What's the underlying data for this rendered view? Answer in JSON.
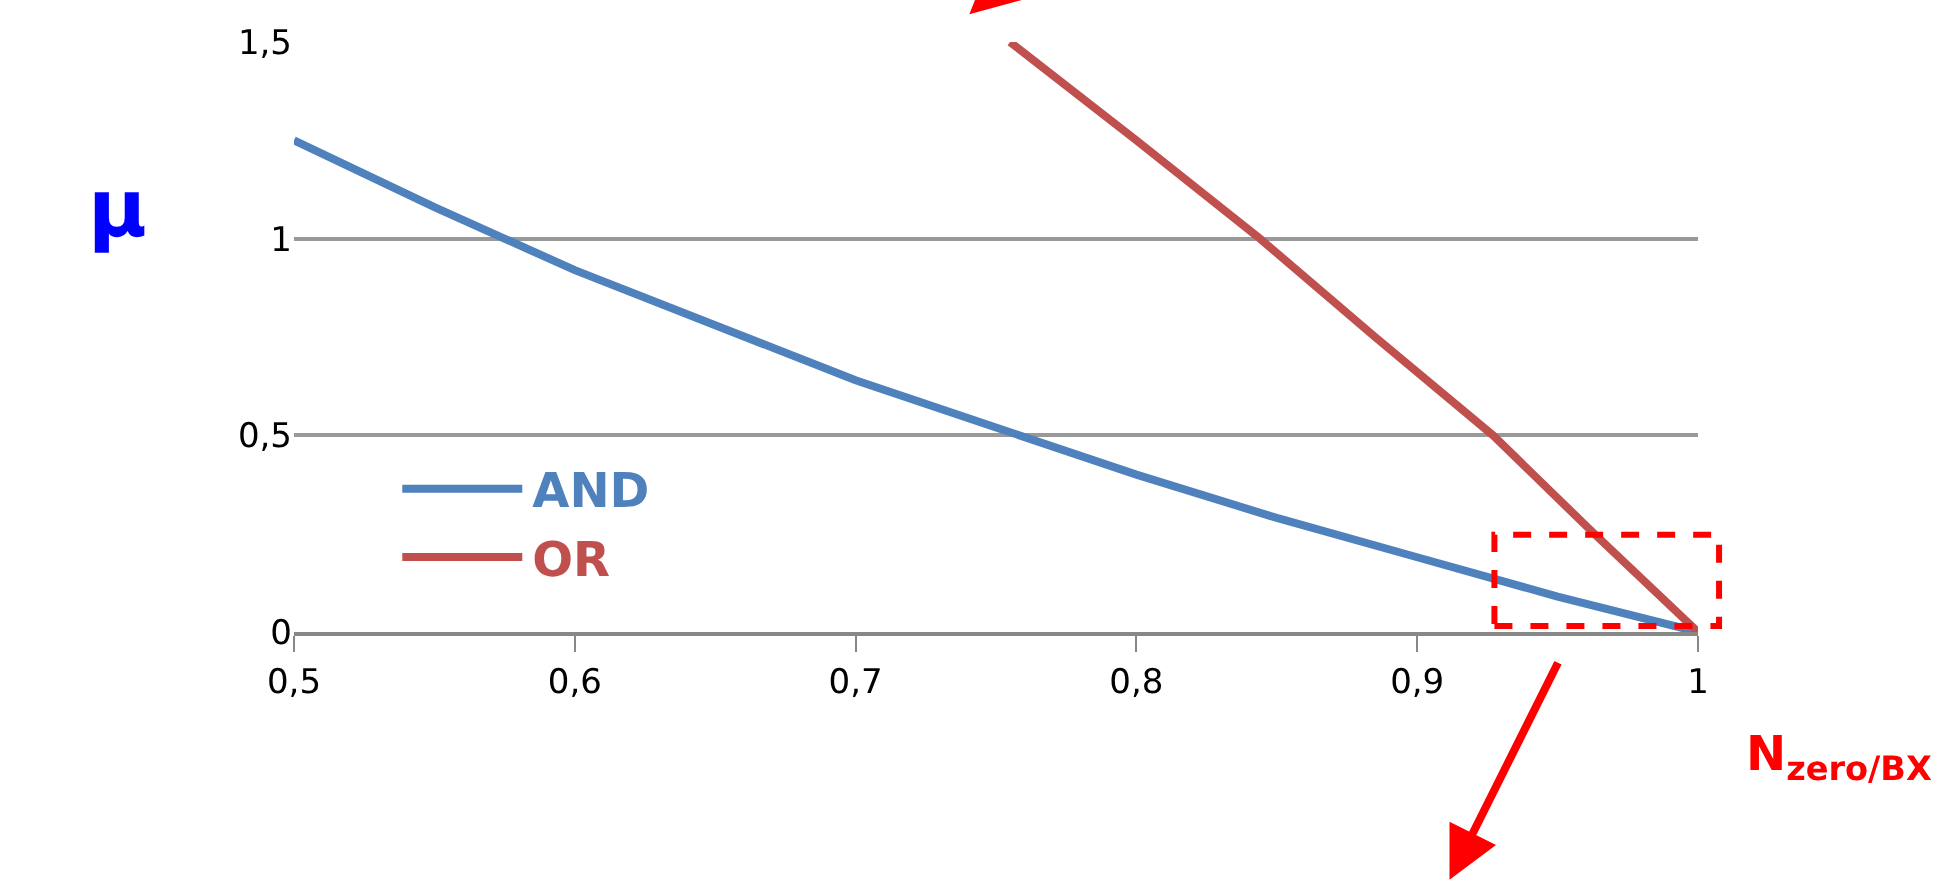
{
  "chart_data": {
    "type": "line",
    "ylabel": "μ",
    "x": [
      0.5,
      0.55,
      0.6,
      0.65,
      0.7,
      0.75,
      0.8,
      0.85,
      0.9,
      0.95,
      1.0
    ],
    "series": [
      {
        "name": "AND",
        "color": "#4f81bd",
        "values": [
          1.25,
          1.08,
          0.92,
          0.78,
          0.64,
          0.52,
          0.4,
          0.29,
          0.19,
          0.09,
          0.0
        ]
      },
      {
        "name": "OR",
        "color": "#c0504d",
        "x": [
          0.755,
          0.8,
          0.844,
          0.885,
          0.927,
          0.963,
          1.0
        ],
        "values": [
          1.5,
          1.25,
          1.0,
          0.75,
          0.5,
          0.25,
          0.0
        ]
      }
    ],
    "xlim": [
      0.5,
      1.0
    ],
    "ylim": [
      0,
      1.5
    ],
    "xticks": [
      {
        "value": 0.5,
        "label": "0,5"
      },
      {
        "value": 0.6,
        "label": "0,6"
      },
      {
        "value": 0.7,
        "label": "0,7"
      },
      {
        "value": 0.8,
        "label": "0,8"
      },
      {
        "value": 0.9,
        "label": "0,9"
      },
      1
    ],
    "yticks": [
      0,
      {
        "value": 0.5,
        "label": "0,5"
      },
      1,
      {
        "value": 1.5,
        "label": "1,5"
      }
    ],
    "grid": "y",
    "legend": "bottom left",
    "line_style": "solid",
    "marker": "none",
    "annotations": [
      "N$_{zero/BX}$"
    ]
  }
}
